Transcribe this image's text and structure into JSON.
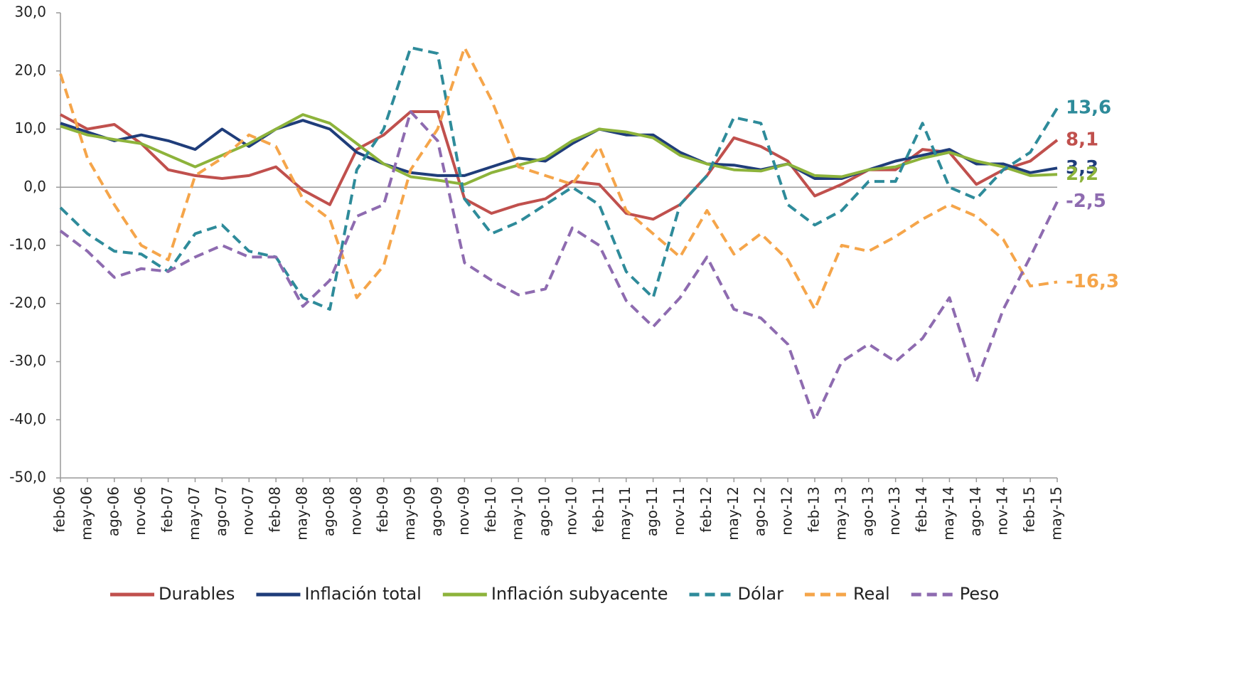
{
  "chart_data": {
    "type": "line",
    "categories": [
      "feb-06",
      "may-06",
      "ago-06",
      "nov-06",
      "feb-07",
      "may-07",
      "ago-07",
      "nov-07",
      "feb-08",
      "may-08",
      "ago-08",
      "nov-08",
      "feb-09",
      "may-09",
      "ago-09",
      "nov-09",
      "feb-10",
      "may-10",
      "ago-10",
      "nov-10",
      "feb-11",
      "may-11",
      "ago-11",
      "nov-11",
      "feb-12",
      "may-12",
      "ago-12",
      "nov-12",
      "feb-13",
      "may-13",
      "ago-13",
      "nov-13",
      "feb-14",
      "may-14",
      "ago-14",
      "nov-14",
      "feb-15",
      "may-15"
    ],
    "ylim": [
      -50,
      30
    ],
    "yticks": [
      {
        "value": -50,
        "label": "-50,0"
      },
      {
        "value": -40,
        "label": "-40,0"
      },
      {
        "value": -30,
        "label": "-30,0"
      },
      {
        "value": -20,
        "label": "-20,0"
      },
      {
        "value": -10,
        "label": "-10,0"
      },
      {
        "value": 0,
        "label": "0,0"
      },
      {
        "value": 10,
        "label": "10,0"
      },
      {
        "value": 20,
        "label": "20,0"
      },
      {
        "value": 30,
        "label": "30,0"
      }
    ],
    "legend": "bottom",
    "series": [
      {
        "name": "Durables",
        "color": "#c0504d",
        "dash": false,
        "values": [
          12.5,
          10,
          10.8,
          7.5,
          3,
          2,
          1.5,
          2,
          3.5,
          -0.5,
          -3,
          6.5,
          9,
          13,
          13,
          -2,
          -4.5,
          -3,
          -2,
          1,
          0.5,
          -4.5,
          -5.5,
          -3,
          2,
          8.5,
          7,
          4.5,
          -1.5,
          0.5,
          3,
          3,
          6.5,
          6,
          0.5,
          3,
          4.5,
          8.1
        ],
        "value_labels": [
          null,
          null,
          null,
          null,
          null,
          null,
          null,
          null,
          null,
          null,
          null,
          null,
          null,
          null,
          null,
          null,
          null,
          null,
          null,
          null,
          null,
          null,
          null,
          null,
          null,
          null,
          null,
          null,
          null,
          null,
          null,
          null,
          null,
          null,
          null,
          null,
          null,
          "8,1"
        ]
      },
      {
        "name": "Inflación total",
        "color": "#1f3d7a",
        "dash": false,
        "values": [
          11,
          9.5,
          8,
          9,
          8,
          6.5,
          10,
          7,
          10,
          11.5,
          10,
          6,
          4,
          2.5,
          2,
          2,
          3.5,
          5,
          4.5,
          7.5,
          10,
          9,
          9,
          6,
          4,
          3.8,
          3,
          4,
          1.5,
          1.5,
          3,
          4.5,
          5.5,
          6.5,
          4,
          4,
          2.5,
          3.3
        ],
        "value_labels": [
          null,
          null,
          null,
          null,
          null,
          null,
          null,
          null,
          null,
          null,
          null,
          null,
          null,
          null,
          null,
          null,
          null,
          null,
          null,
          null,
          null,
          null,
          null,
          null,
          null,
          null,
          null,
          null,
          null,
          null,
          null,
          null,
          null,
          null,
          null,
          null,
          null,
          "3,3"
        ]
      },
      {
        "name": "Inflación subyacente",
        "color": "#8db33b",
        "dash": false,
        "values": [
          10.5,
          9,
          8.2,
          7.5,
          5.5,
          3.5,
          5.5,
          7.5,
          10,
          12.5,
          11,
          7.5,
          4,
          1.8,
          1.2,
          0.5,
          2.5,
          3.8,
          5,
          8,
          10,
          9.5,
          8.5,
          5.5,
          4,
          3,
          2.8,
          4,
          2,
          1.8,
          3,
          3.5,
          5,
          6,
          4.5,
          3.5,
          2,
          2.2
        ],
        "value_labels": [
          null,
          null,
          null,
          null,
          null,
          null,
          null,
          null,
          null,
          null,
          null,
          null,
          null,
          null,
          null,
          null,
          null,
          null,
          null,
          null,
          null,
          null,
          null,
          null,
          null,
          null,
          null,
          null,
          null,
          null,
          null,
          null,
          null,
          null,
          null,
          null,
          null,
          "2,2"
        ]
      },
      {
        "name": "Dólar",
        "color": "#2e8b9a",
        "dash": true,
        "values": [
          -3.5,
          -8,
          -11,
          -11.5,
          -14.5,
          -8,
          -6.5,
          -11,
          -12,
          -19,
          -21,
          3,
          10,
          24,
          23,
          -2,
          -8,
          -6,
          -3,
          0,
          -3,
          -14.5,
          -19,
          -3,
          2,
          12,
          11,
          -3,
          -6.5,
          -4,
          1,
          1,
          11,
          0,
          -2,
          3,
          6,
          13.6
        ],
        "value_labels": [
          null,
          null,
          null,
          null,
          null,
          null,
          null,
          null,
          null,
          null,
          null,
          null,
          null,
          null,
          null,
          null,
          null,
          null,
          null,
          null,
          null,
          null,
          null,
          null,
          null,
          null,
          null,
          null,
          null,
          null,
          null,
          null,
          null,
          null,
          null,
          null,
          null,
          "13,6"
        ]
      },
      {
        "name": "Real",
        "color": "#f5a54a",
        "dash": true,
        "values": [
          19.5,
          5,
          -3,
          -10,
          -12.5,
          2,
          5,
          9,
          7,
          -2,
          -5.5,
          -19,
          -13.5,
          3,
          10,
          24,
          15,
          3.5,
          2,
          0.5,
          7,
          -4,
          -8,
          -12,
          -4,
          -11.5,
          -8,
          -12.5,
          -21,
          -10,
          -11,
          -8.5,
          -5.5,
          -3,
          -5,
          -9,
          -17,
          -16.3
        ],
        "value_labels": [
          null,
          null,
          null,
          null,
          null,
          null,
          null,
          null,
          null,
          null,
          null,
          null,
          null,
          null,
          null,
          null,
          null,
          null,
          null,
          null,
          null,
          null,
          null,
          null,
          null,
          null,
          null,
          null,
          null,
          null,
          null,
          null,
          null,
          null,
          null,
          null,
          null,
          "-16,3"
        ]
      },
      {
        "name": "Peso",
        "color": "#8e6bb0",
        "dash": true,
        "values": [
          -7.5,
          -11,
          -15.5,
          -14,
          -14.5,
          -12,
          -10,
          -12,
          -12,
          -20.5,
          -16,
          -5,
          -3,
          13,
          8,
          -13,
          -16,
          -18.5,
          -17.5,
          -7,
          -10,
          -19.5,
          -24,
          -19,
          -12,
          -21,
          -22.5,
          -27,
          -40,
          -30,
          -27,
          -30,
          -26,
          -19,
          -33.5,
          -21,
          -12,
          -2.5
        ],
        "value_labels": [
          null,
          null,
          null,
          null,
          null,
          null,
          null,
          null,
          null,
          null,
          null,
          null,
          null,
          null,
          null,
          null,
          null,
          null,
          null,
          null,
          null,
          null,
          null,
          null,
          null,
          null,
          null,
          null,
          null,
          null,
          null,
          null,
          null,
          null,
          null,
          null,
          null,
          "-2,5"
        ]
      }
    ]
  }
}
